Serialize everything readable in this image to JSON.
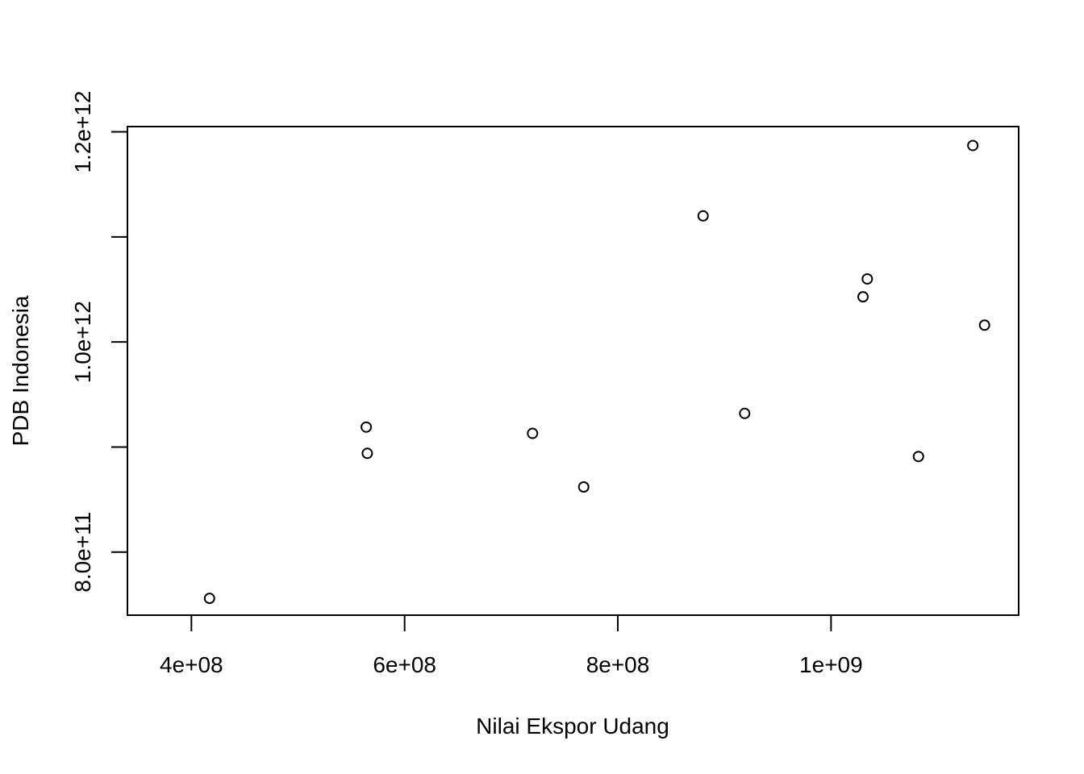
{
  "chart_data": {
    "type": "scatter",
    "title": "",
    "xlabel": "Nilai Ekspor Udang",
    "ylabel": "PDB Indonesia",
    "xlim": [
      340000000,
      1176000000
    ],
    "ylim": [
      740000000000,
      1205000000000
    ],
    "x_ticks": [
      400000000,
      600000000,
      800000000,
      1000000000
    ],
    "x_tick_labels": [
      "4e+08",
      "6e+08",
      "8e+08",
      "1e+09"
    ],
    "y_ticks": [
      800000000000,
      900000000000,
      1000000000000,
      1100000000000,
      1200000000000
    ],
    "y_tick_labels": [
      "8.0e+11",
      "",
      "1.0e+12",
      "",
      "1.2e+12"
    ],
    "grid": false,
    "points": [
      {
        "x": 417000000,
        "y": 756000000000
      },
      {
        "x": 564000000,
        "y": 919000000000
      },
      {
        "x": 565000000,
        "y": 894000000000
      },
      {
        "x": 720000000,
        "y": 913000000000
      },
      {
        "x": 768000000,
        "y": 862000000000
      },
      {
        "x": 880000000,
        "y": 1120000000000
      },
      {
        "x": 919000000,
        "y": 932000000000
      },
      {
        "x": 1030000000,
        "y": 1043000000000
      },
      {
        "x": 1034000000,
        "y": 1060000000000
      },
      {
        "x": 1082000000,
        "y": 891000000000
      },
      {
        "x": 1133000000,
        "y": 1187000000000
      },
      {
        "x": 1144000000,
        "y": 1016000000000
      }
    ]
  }
}
